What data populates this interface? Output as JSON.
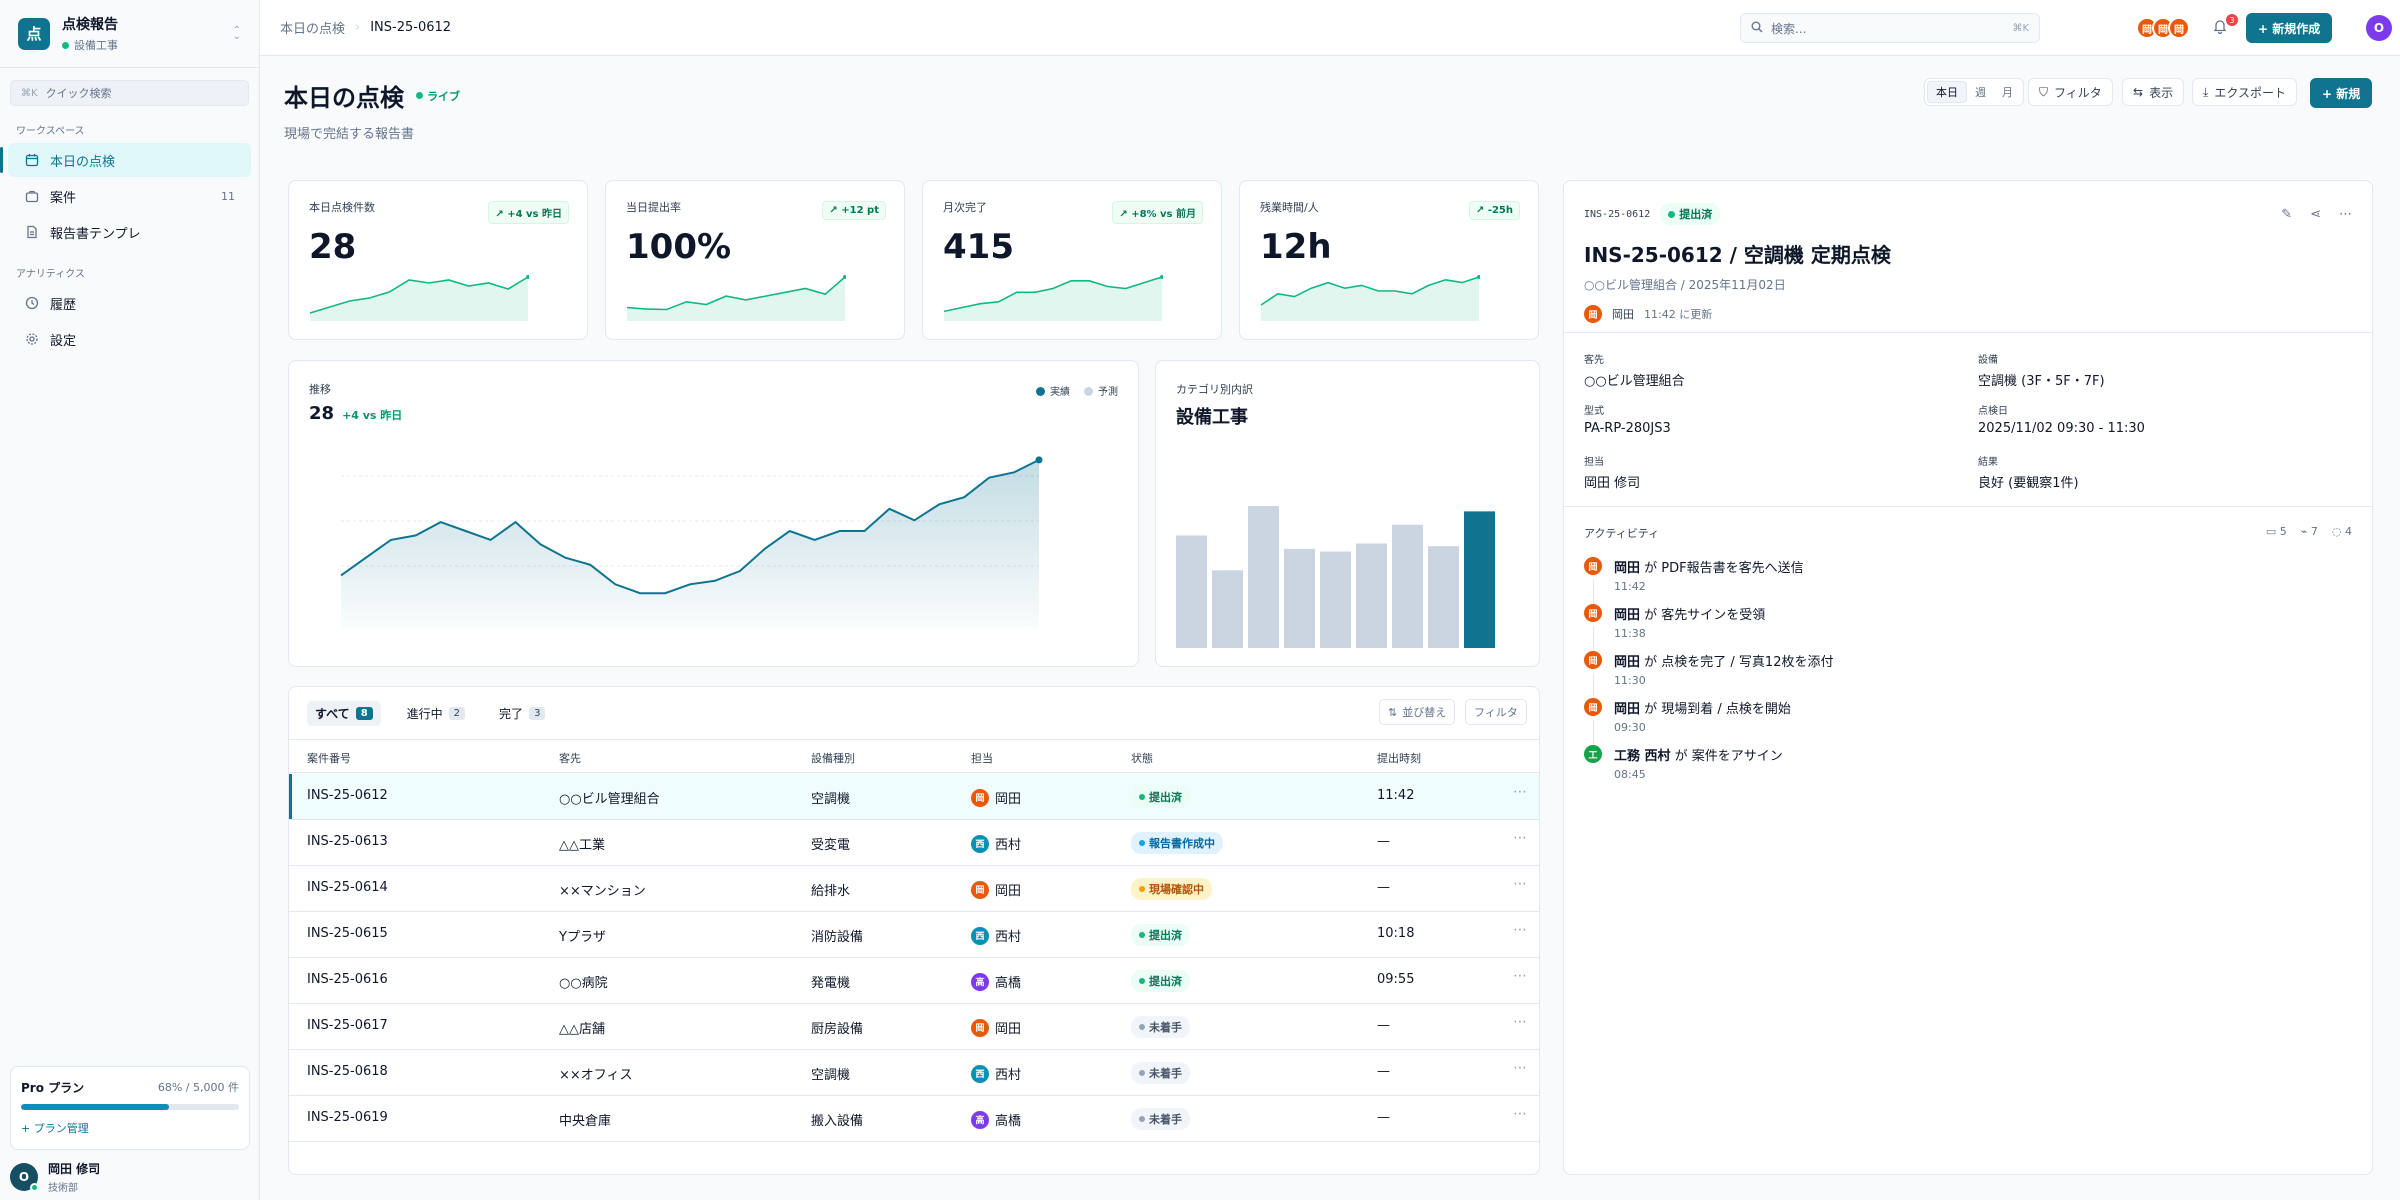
{
  "app": {
    "logo": "点",
    "title": "点検報告",
    "subtitle": "設備工事"
  },
  "quick_search": {
    "shortcut": "⌘K",
    "placeholder": "クイック検索"
  },
  "sidebar": {
    "section1": "ワークスペース",
    "section2": "アナリティクス",
    "items": [
      {
        "label": "本日の点検",
        "icon": "calendar-icon"
      },
      {
        "label": "案件",
        "count": "11",
        "icon": "briefcase-icon"
      },
      {
        "label": "報告書テンプレ",
        "icon": "document-icon"
      },
      {
        "label": "履歴",
        "icon": "history-icon"
      },
      {
        "label": "設定",
        "icon": "gear-icon"
      }
    ]
  },
  "plan": {
    "name": "Pro プラン",
    "usage": "68% / 5,000 件",
    "usage_fraction": 0.68,
    "link": "+ プラン管理"
  },
  "user": {
    "initial": "O",
    "name": "岡田 修司",
    "role": "技術部"
  },
  "topbar": {
    "breadcrumb": [
      "本日の点検",
      "INS-25-0612"
    ],
    "search_placeholder": "検索...",
    "search_shortcut": "⌘K",
    "avatars": [
      "岡",
      "岡",
      "岡"
    ],
    "notifications": "3",
    "new_button": "+ 新規作成",
    "user_initial": "O"
  },
  "page": {
    "title": "本日の点検",
    "live": "ライブ",
    "subtitle": "現場で完結する報告書",
    "periods": [
      "本日",
      "週",
      "月"
    ],
    "filter": "フィルタ",
    "view": "表示",
    "export": "エクスポート",
    "new": "+ 新規"
  },
  "kpis": [
    {
      "label": "本日点検件数",
      "value": "28",
      "change": "↗ +4 vs 昨日",
      "spark": [
        2,
        4,
        6,
        7,
        9,
        13,
        12,
        13,
        11,
        12,
        10,
        14
      ]
    },
    {
      "label": "当日提出率",
      "value": "100%",
      "change": "↗ +12 pt",
      "spark": [
        3,
        2.6,
        2.5,
        4.5,
        3.8,
        6,
        5,
        6,
        7,
        8,
        6.5,
        11
      ]
    },
    {
      "label": "月次完了",
      "value": "415",
      "change": "↗ +8% vs 前月",
      "spark": [
        2,
        3,
        4,
        4.5,
        7,
        7,
        8,
        10,
        10,
        8.5,
        8,
        9.5,
        11
      ]
    },
    {
      "label": "残業時間/人",
      "value": "12h",
      "change": "↗ -25h",
      "spark": [
        5,
        9,
        8,
        11,
        13,
        11,
        12,
        10,
        10,
        9,
        12,
        14,
        13,
        15
      ]
    }
  ],
  "trend": {
    "label": "推移",
    "value": "28",
    "delta": "+4 vs 昨日",
    "legend": [
      "実績",
      "予測"
    ]
  },
  "category": {
    "label": "カテゴリ別内訳",
    "title": "設備工事"
  },
  "chart_data": [
    {
      "type": "area",
      "series": [
        {
          "name": "実績",
          "values": [
            14,
            16,
            18,
            18.5,
            20,
            19,
            18,
            20,
            17.5,
            16,
            15.2,
            13,
            12,
            12,
            13,
            13.4,
            14.5,
            17,
            19,
            18,
            19,
            19,
            21.5,
            20.2,
            22,
            22.8,
            25,
            25.6,
            27
          ]
        }
      ],
      "color": "#0e7490"
    },
    {
      "type": "bar",
      "values": [
        4.2,
        2.9,
        5.3,
        3.7,
        3.6,
        3.9,
        4.6,
        3.8,
        5.1
      ],
      "highlight_index": 8,
      "colors": {
        "default": "#cbd5e1",
        "highlight": "#0e7490"
      }
    }
  ],
  "table": {
    "tabs": [
      {
        "label": "すべて",
        "count": "8"
      },
      {
        "label": "進行中",
        "count": "2"
      },
      {
        "label": "完了",
        "count": "3"
      }
    ],
    "sort": "並び替え",
    "filter": "フィルタ",
    "columns": [
      "案件番号",
      "客先",
      "設備種別",
      "担当",
      "状態",
      "提出時刻"
    ],
    "rows": [
      {
        "id": "INS-25-0612",
        "client": "○○ビル管理組合",
        "type": "空調機",
        "av": "岡",
        "avc": "#ea580c",
        "who": "岡田",
        "status": "提出済",
        "st": "green",
        "time": "11:42"
      },
      {
        "id": "INS-25-0613",
        "client": "△△工業",
        "type": "受変電",
        "av": "西",
        "avc": "#0891b2",
        "who": "西村",
        "status": "報告書作成中",
        "st": "blue",
        "time": "—"
      },
      {
        "id": "INS-25-0614",
        "client": "××マンション",
        "type": "給排水",
        "av": "岡",
        "avc": "#ea580c",
        "who": "岡田",
        "status": "現場確認中",
        "st": "amber",
        "time": "—"
      },
      {
        "id": "INS-25-0615",
        "client": "Yプラザ",
        "type": "消防設備",
        "av": "西",
        "avc": "#0891b2",
        "who": "西村",
        "status": "提出済",
        "st": "green",
        "time": "10:18"
      },
      {
        "id": "INS-25-0616",
        "client": "○○病院",
        "type": "発電機",
        "av": "高",
        "avc": "#7c3aed",
        "who": "高橋",
        "status": "提出済",
        "st": "green",
        "time": "09:55"
      },
      {
        "id": "INS-25-0617",
        "client": "△△店舗",
        "type": "厨房設備",
        "av": "岡",
        "avc": "#ea580c",
        "who": "岡田",
        "status": "未着手",
        "st": "gray",
        "time": "—"
      },
      {
        "id": "INS-25-0618",
        "client": "××オフィス",
        "type": "空調機",
        "av": "西",
        "avc": "#0891b2",
        "who": "西村",
        "status": "未着手",
        "st": "gray",
        "time": "—"
      },
      {
        "id": "INS-25-0619",
        "client": "中央倉庫",
        "type": "搬入設備",
        "av": "高",
        "avc": "#7c3aed",
        "who": "高橋",
        "status": "未着手",
        "st": "gray",
        "time": "—"
      }
    ]
  },
  "detail": {
    "id": "INS-25-0612",
    "status": "提出済",
    "title": "INS-25-0612 / 空調機 定期点検",
    "subtitle": "○○ビル管理組合 / 2025年11月02日",
    "who_avatar": "岡",
    "who": "岡田",
    "updated": "11:42 に更新",
    "fields": [
      {
        "k": "客先",
        "v": "○○ビル管理組合"
      },
      {
        "k": "設備",
        "v": "空調機 (3F・5F・7F)"
      },
      {
        "k": "型式",
        "v": "PA-RP-280JS3"
      },
      {
        "k": "点検日",
        "v": "2025/11/02 09:30 - 11:30"
      },
      {
        "k": "担当",
        "v": "岡田 修司"
      },
      {
        "k": "結果",
        "v": "良好 (要観察1件)"
      }
    ],
    "activity_label": "アクティビティ",
    "counts": [
      "5",
      "7",
      "4"
    ],
    "events": [
      {
        "av": "岡",
        "avc": "#ea580c",
        "who": "岡田",
        "action": " が PDF報告書を客先へ送信",
        "time": "11:42"
      },
      {
        "av": "岡",
        "avc": "#ea580c",
        "who": "岡田",
        "action": " が 客先サインを受領",
        "time": "11:38"
      },
      {
        "av": "岡",
        "avc": "#ea580c",
        "who": "岡田",
        "action": " が 点検を完了 / 写真12枚を添付",
        "time": "11:30"
      },
      {
        "av": "岡",
        "avc": "#ea580c",
        "who": "岡田",
        "action": " が 現場到着 / 点検を開始",
        "time": "09:30"
      },
      {
        "av": "工",
        "avc": "#16a34a",
        "who": "工務 西村",
        "action": " が 案件をアサイン",
        "time": "08:45"
      }
    ]
  }
}
